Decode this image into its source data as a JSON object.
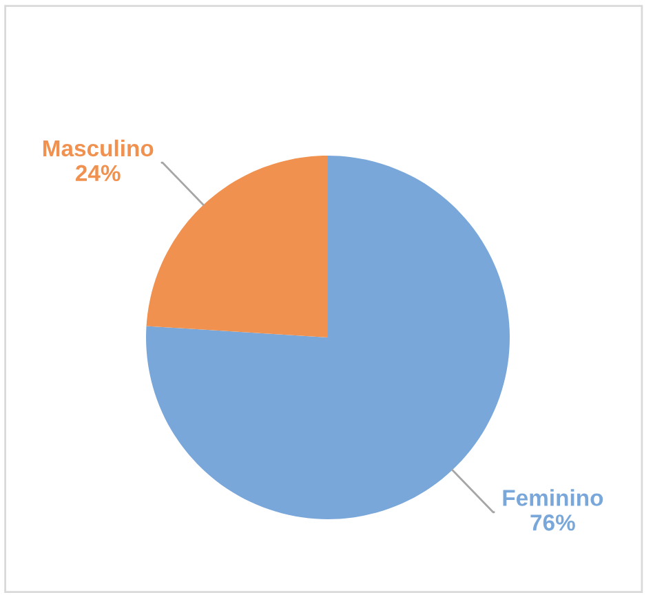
{
  "chart_data": {
    "type": "pie",
    "categories": [
      "Feminino",
      "Masculino"
    ],
    "values": [
      76,
      24
    ],
    "colors": [
      "#7aa7da",
      "#f0914f"
    ],
    "value_labels": [
      "76%",
      "24%"
    ],
    "legend": false
  }
}
